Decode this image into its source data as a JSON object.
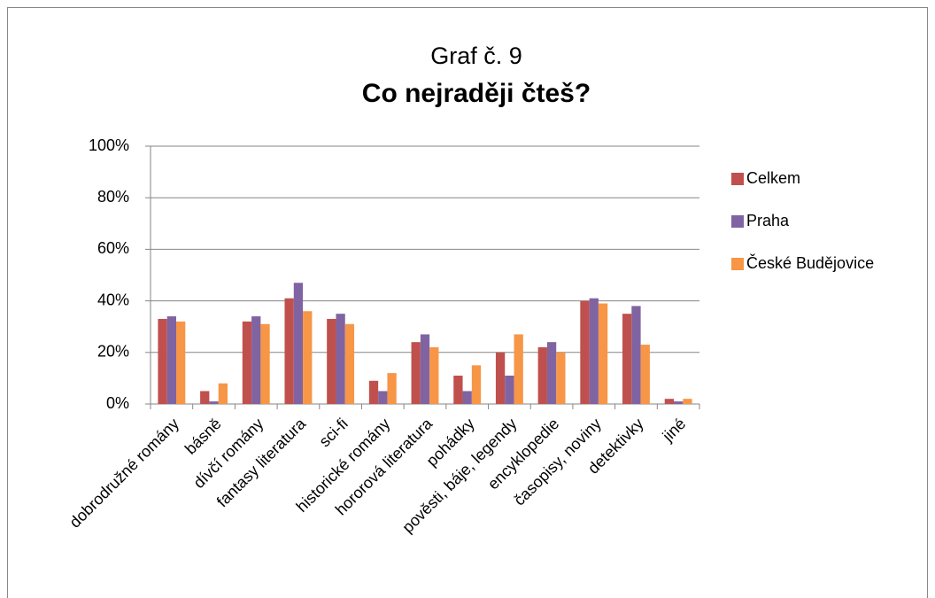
{
  "chart_data": {
    "type": "bar",
    "title": "Graf č. 9",
    "subtitle": "Co nejraději čteš?",
    "categories": [
      "dobrodružné romány",
      "básně",
      "dívčí romány",
      "fantasy literatura",
      "sci-fi",
      "historické romány",
      "hororová literatura",
      "pohádky",
      "pověsti, báje, legendy",
      "encyklopedie",
      "časopisy, noviny",
      "detektivky",
      "jiné"
    ],
    "series": [
      {
        "name": "Celkem",
        "color": "#c0504d",
        "values": [
          33,
          5,
          32,
          41,
          33,
          9,
          24,
          11,
          20,
          22,
          40,
          35,
          2
        ]
      },
      {
        "name": "Praha",
        "color": "#8064a2",
        "values": [
          34,
          1,
          34,
          47,
          35,
          5,
          27,
          5,
          11,
          24,
          41,
          38,
          1
        ]
      },
      {
        "name": "České Budějovice",
        "color": "#f79646",
        "values": [
          32,
          8,
          31,
          36,
          31,
          12,
          22,
          15,
          27,
          20,
          39,
          23,
          2
        ]
      }
    ],
    "ylim": [
      0,
      100
    ],
    "yticks": [
      {
        "value": 0,
        "label": "0%"
      },
      {
        "value": 20,
        "label": "20%"
      },
      {
        "value": 40,
        "label": "40%"
      },
      {
        "value": 60,
        "label": "60%"
      },
      {
        "value": 80,
        "label": "80%"
      },
      {
        "value": 100,
        "label": "100%"
      }
    ],
    "grid": true,
    "legend": "right"
  }
}
